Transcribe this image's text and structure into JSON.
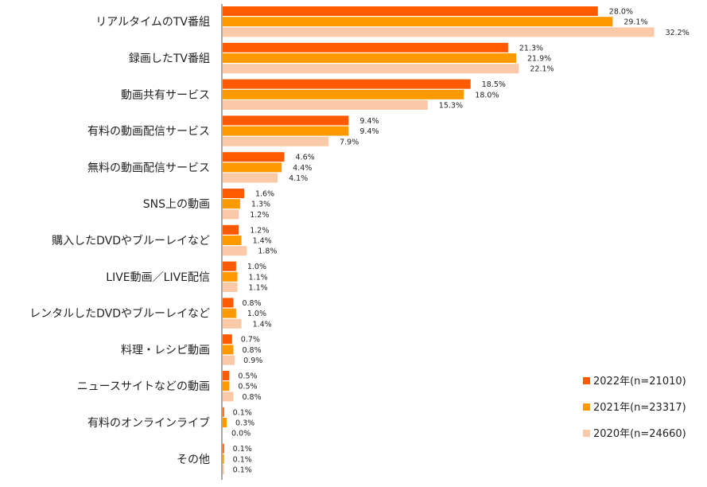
{
  "chart_data": {
    "type": "bar",
    "orientation": "horizontal",
    "categories": [
      "リアルタイムのTV番組",
      "録画したTV番組",
      "動画共有サービス",
      "有料の動画配信サービス",
      "無料の動画配信サービス",
      "SNS上の動画",
      "購入したDVDやブルーレイなど",
      "LIVE動画／LIVE配信",
      "レンタルしたDVDやブルーレイなど",
      "料理・レシピ動画",
      "ニュースサイトなどの動画",
      "有料のオンラインライブ",
      "その他"
    ],
    "series": [
      {
        "name": "2022年(n=21010)",
        "color": "#ff5a00",
        "values": [
          28.0,
          21.3,
          18.5,
          9.4,
          4.6,
          1.6,
          1.2,
          1.0,
          0.8,
          0.7,
          0.5,
          0.1,
          0.1
        ],
        "labels": [
          "28.0%",
          "21.3%",
          "18.5%",
          "9.4%",
          "4.6%",
          "1.6%",
          "1.2%",
          "1.0%",
          "0.8%",
          "0.7%",
          "0.5%",
          "0.1%",
          "0.1%"
        ]
      },
      {
        "name": "2021年(n=23317)",
        "color": "#ff9900",
        "values": [
          29.1,
          21.9,
          18.0,
          9.4,
          4.4,
          1.3,
          1.4,
          1.1,
          1.0,
          0.8,
          0.5,
          0.3,
          0.1
        ],
        "labels": [
          "29.1%",
          "21.9%",
          "18.0%",
          "9.4%",
          "4.4%",
          "1.3%",
          "1.4%",
          "1.1%",
          "1.0%",
          "0.8%",
          "0.5%",
          "0.3%",
          "0.1%"
        ]
      },
      {
        "name": "2020年(n=24660)",
        "color": "#f9c9a8",
        "values": [
          32.2,
          22.1,
          15.3,
          7.9,
          4.1,
          1.2,
          1.8,
          1.1,
          1.4,
          0.9,
          0.8,
          0.0,
          0.1
        ],
        "labels": [
          "32.2%",
          "22.1%",
          "15.3%",
          "7.9%",
          "4.1%",
          "1.2%",
          "1.8%",
          "1.1%",
          "1.4%",
          "0.9%",
          "0.8%",
          "0.0%",
          "0.1%"
        ]
      }
    ],
    "xlim": [
      0,
      32.2
    ],
    "legend_position": "bottom-right",
    "grid": false
  }
}
